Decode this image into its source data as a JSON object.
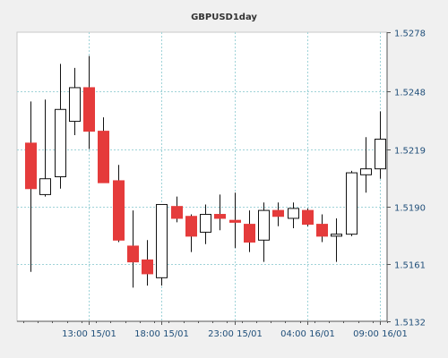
{
  "chart_data": {
    "type": "candlestick",
    "title": "GBPUSD1day",
    "xlabel": "",
    "ylabel": "",
    "ylim": [
      1.5132,
      1.5278
    ],
    "y_ticks": [
      "1.5132",
      "1.5161",
      "1.5190",
      "1.5219",
      "1.5248",
      "1.5278"
    ],
    "x_ticks": [
      {
        "label": "13:00 15/01",
        "index": 4
      },
      {
        "label": "18:00 15/01",
        "index": 9
      },
      {
        "label": "23:00 15/01",
        "index": 14
      },
      {
        "label": "04:00 16/01",
        "index": 19
      },
      {
        "label": "09:00 16/01",
        "index": 24
      }
    ],
    "grid": true,
    "colors": {
      "up": "#ffffff",
      "down": "#e53b3b",
      "grid": "#9fd3d8",
      "background": "#ffffff"
    },
    "candles": [
      {
        "open": 1.5222,
        "high": 1.5243,
        "low": 1.5157,
        "close": 1.5199
      },
      {
        "open": 1.5196,
        "high": 1.5244,
        "low": 1.5195,
        "close": 1.5204
      },
      {
        "open": 1.5205,
        "high": 1.5262,
        "low": 1.5199,
        "close": 1.5239
      },
      {
        "open": 1.5233,
        "high": 1.526,
        "low": 1.5226,
        "close": 1.525
      },
      {
        "open": 1.525,
        "high": 1.5266,
        "low": 1.5219,
        "close": 1.5228
      },
      {
        "open": 1.5228,
        "high": 1.5235,
        "low": 1.5202,
        "close": 1.5202
      },
      {
        "open": 1.5203,
        "high": 1.5211,
        "low": 1.5172,
        "close": 1.5173
      },
      {
        "open": 1.517,
        "high": 1.5188,
        "low": 1.5149,
        "close": 1.5162
      },
      {
        "open": 1.5163,
        "high": 1.5173,
        "low": 1.515,
        "close": 1.5156
      },
      {
        "open": 1.5154,
        "high": 1.5191,
        "low": 1.515,
        "close": 1.5191
      },
      {
        "open": 1.519,
        "high": 1.5195,
        "low": 1.5182,
        "close": 1.5184
      },
      {
        "open": 1.5185,
        "high": 1.5186,
        "low": 1.5167,
        "close": 1.5175
      },
      {
        "open": 1.5177,
        "high": 1.5191,
        "low": 1.5171,
        "close": 1.5186
      },
      {
        "open": 1.5186,
        "high": 1.5196,
        "low": 1.5178,
        "close": 1.5184
      },
      {
        "open": 1.5183,
        "high": 1.5197,
        "low": 1.5169,
        "close": 1.5182
      },
      {
        "open": 1.5181,
        "high": 1.5188,
        "low": 1.5167,
        "close": 1.5172
      },
      {
        "open": 1.5173,
        "high": 1.5192,
        "low": 1.5162,
        "close": 1.5188
      },
      {
        "open": 1.5188,
        "high": 1.5192,
        "low": 1.518,
        "close": 1.5185
      },
      {
        "open": 1.5184,
        "high": 1.5192,
        "low": 1.5179,
        "close": 1.5189
      },
      {
        "open": 1.5188,
        "high": 1.5189,
        "low": 1.518,
        "close": 1.5181
      },
      {
        "open": 1.5181,
        "high": 1.5186,
        "low": 1.5172,
        "close": 1.5175
      },
      {
        "open": 1.5175,
        "high": 1.5184,
        "low": 1.5162,
        "close": 1.5176
      },
      {
        "open": 1.5176,
        "high": 1.5208,
        "low": 1.5175,
        "close": 1.5207
      },
      {
        "open": 1.5206,
        "high": 1.5225,
        "low": 1.5197,
        "close": 1.5209
      },
      {
        "open": 1.5209,
        "high": 1.5238,
        "low": 1.5204,
        "close": 1.5224
      }
    ]
  }
}
